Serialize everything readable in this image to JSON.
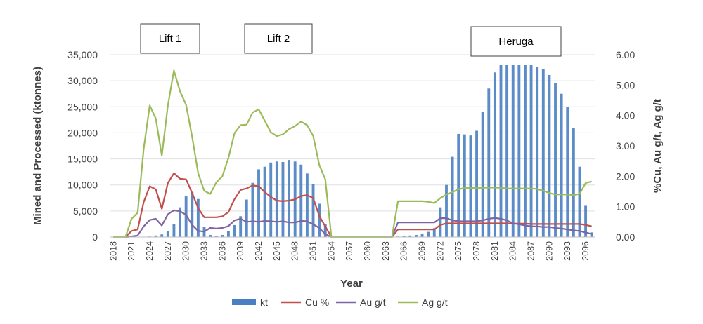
{
  "chart_data": {
    "type": "bar+line",
    "xlabel": "Year",
    "ylabel_left": "Mined and Processed (ktonnes)",
    "ylabel_right": "%Cu, Au g/t, Ag g/t",
    "ylim_left": [
      0,
      35000
    ],
    "ylim_right": [
      0,
      6
    ],
    "y_ticks_left": [
      "0",
      "5,000",
      "10,000",
      "15,000",
      "20,000",
      "25,000",
      "30,000",
      "35,000"
    ],
    "y_ticks_right": [
      "0.00",
      "1.00",
      "2.00",
      "3.00",
      "4.00",
      "5.00",
      "6.00"
    ],
    "x_tick_labels": [
      "2018",
      "2021",
      "2024",
      "2027",
      "2030",
      "2033",
      "2036",
      "2039",
      "2042",
      "2045",
      "2048",
      "2051",
      "2054",
      "2057",
      "2060",
      "2063",
      "2066",
      "2069",
      "2072",
      "2075",
      "2078",
      "2081",
      "2084",
      "2087",
      "2090",
      "2093",
      "2096"
    ],
    "x_start": 2018,
    "x_end": 2097,
    "legend": {
      "position": "bottom",
      "items": [
        "kt",
        "Cu %",
        "Au g/t",
        "Ag g/t"
      ]
    },
    "colors": {
      "kt": "#4a7fc1",
      "cu": "#c0504d",
      "au": "#8064a2",
      "ag": "#9bbb59"
    },
    "annotations": [
      "Lift 1",
      "Lift 2",
      "Heruga"
    ],
    "series": [
      {
        "name": "kt",
        "axis": "left",
        "kind": "bar",
        "values": [
          0,
          0,
          0,
          0,
          0,
          0,
          100,
          300,
          500,
          1200,
          2500,
          5700,
          7800,
          8600,
          7300,
          2000,
          400,
          200,
          400,
          1200,
          2300,
          4000,
          7200,
          10400,
          13000,
          13500,
          14300,
          14500,
          14400,
          14800,
          14500,
          13900,
          12200,
          10100,
          6400,
          2500,
          100,
          0,
          0,
          0,
          0,
          0,
          0,
          0,
          0,
          0,
          0,
          100,
          200,
          300,
          400,
          600,
          1000,
          1700,
          5700,
          10000,
          15400,
          19800,
          19700,
          19500,
          20400,
          24100,
          28500,
          31600,
          33000,
          33100,
          33100,
          33100,
          33000,
          33000,
          32700,
          32300,
          31100,
          29500,
          27500,
          25000,
          21000,
          13500,
          6000,
          900
        ]
      },
      {
        "name": "Cu %",
        "axis": "right",
        "kind": "line",
        "values": [
          0,
          0,
          0,
          0.2,
          0.25,
          1.15,
          1.67,
          1.57,
          0.93,
          1.78,
          2.1,
          1.92,
          1.9,
          1.45,
          0.95,
          0.65,
          0.65,
          0.65,
          0.68,
          0.82,
          1.25,
          1.55,
          1.6,
          1.7,
          1.67,
          1.48,
          1.32,
          1.2,
          1.18,
          1.2,
          1.24,
          1.35,
          1.38,
          1.28,
          0.7,
          0.35,
          0,
          0,
          0,
          0,
          0,
          0,
          0,
          0,
          0,
          0,
          0,
          0.25,
          0.25,
          0.25,
          0.25,
          0.25,
          0.25,
          0.25,
          0.4,
          0.45,
          0.45,
          0.45,
          0.45,
          0.45,
          0.45,
          0.45,
          0.45,
          0.45,
          0.45,
          0.45,
          0.44,
          0.44,
          0.44,
          0.43,
          0.43,
          0.43,
          0.43,
          0.43,
          0.43,
          0.43,
          0.43,
          0.43,
          0.4,
          0.35
        ]
      },
      {
        "name": "Au g/t",
        "axis": "right",
        "kind": "line",
        "values": [
          0,
          0,
          0,
          0.02,
          0.05,
          0.35,
          0.56,
          0.6,
          0.38,
          0.75,
          0.88,
          0.85,
          0.73,
          0.4,
          0.2,
          0.18,
          0.3,
          0.28,
          0.3,
          0.36,
          0.55,
          0.6,
          0.5,
          0.52,
          0.5,
          0.53,
          0.52,
          0.5,
          0.52,
          0.48,
          0.48,
          0.53,
          0.52,
          0.42,
          0.3,
          0.1,
          0,
          0,
          0,
          0,
          0,
          0,
          0,
          0,
          0,
          0,
          0,
          0.48,
          0.48,
          0.48,
          0.48,
          0.48,
          0.48,
          0.48,
          0.62,
          0.62,
          0.55,
          0.52,
          0.52,
          0.52,
          0.52,
          0.55,
          0.6,
          0.63,
          0.6,
          0.55,
          0.45,
          0.42,
          0.38,
          0.35,
          0.35,
          0.33,
          0.33,
          0.3,
          0.28,
          0.25,
          0.22,
          0.2,
          0.15,
          0.1
        ]
      },
      {
        "name": "Ag g/t",
        "axis": "right",
        "kind": "line",
        "values": [
          0,
          0,
          0,
          0.6,
          0.8,
          2.9,
          4.33,
          3.9,
          2.68,
          4.33,
          5.48,
          4.8,
          4.35,
          3.3,
          2.1,
          1.52,
          1.42,
          1.8,
          2.0,
          2.6,
          3.42,
          3.68,
          3.7,
          4.1,
          4.2,
          3.83,
          3.45,
          3.32,
          3.38,
          3.55,
          3.65,
          3.8,
          3.68,
          3.33,
          2.38,
          1.9,
          0,
          0,
          0,
          0,
          0,
          0,
          0,
          0,
          0,
          0,
          0,
          1.18,
          1.18,
          1.18,
          1.18,
          1.18,
          1.16,
          1.12,
          1.28,
          1.4,
          1.48,
          1.57,
          1.62,
          1.62,
          1.62,
          1.62,
          1.63,
          1.63,
          1.62,
          1.6,
          1.6,
          1.6,
          1.6,
          1.6,
          1.58,
          1.52,
          1.45,
          1.4,
          1.4,
          1.4,
          1.38,
          1.42,
          1.78,
          1.83
        ]
      }
    ]
  }
}
